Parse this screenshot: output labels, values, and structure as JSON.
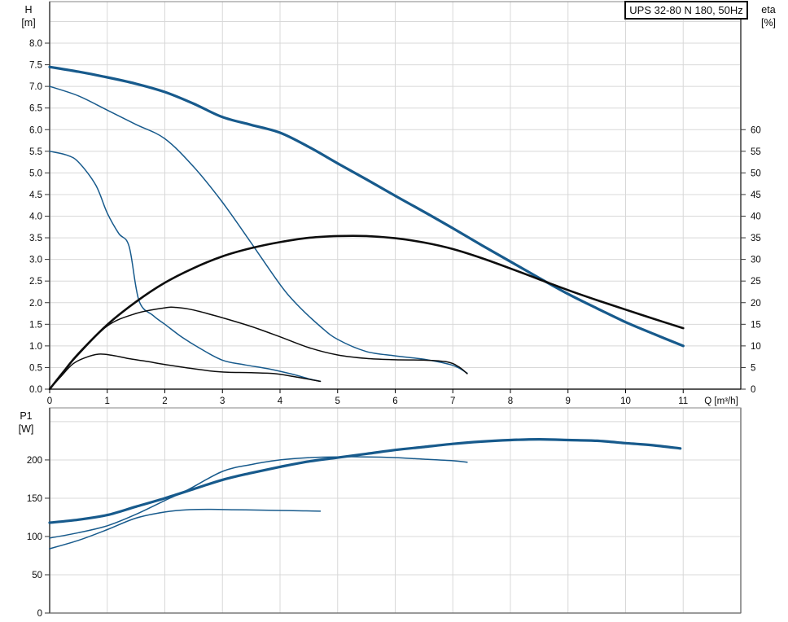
{
  "title_box": {
    "label": "UPS 32-80 N 180, 50Hz"
  },
  "axis_unit_labels": {
    "head_line1": "H",
    "head_line2": "[m]",
    "eta_line1": "eta",
    "eta_line2": "[%]",
    "power_line1": "P1",
    "power_line2": "[W]"
  },
  "colors": {
    "curve_blue": "#175a8c",
    "curve_black": "#0d0d0d",
    "grid": "#d8d8d8",
    "frame": "#9a9a9a",
    "axis_dark": "#6b6b6b",
    "axis_black": "#000000",
    "text": "#0a0a0a"
  },
  "chart_data": [
    {
      "type": "line",
      "name": "head-efficiency-chart",
      "x": {
        "min": 0,
        "max": 12,
        "gridline_step": 1,
        "tick_step": 1,
        "label": "Q [m³/h]",
        "tick_labels": [
          "0",
          "1",
          "2",
          "3",
          "4",
          "5",
          "6",
          "7",
          "8",
          "9",
          "10",
          "11"
        ]
      },
      "y_left": {
        "min": 0,
        "max": 8.96,
        "gridline_step": 0.5,
        "tick_step": 0.5,
        "label": "H [m]",
        "tick_labels": [
          "0.0",
          "0.5",
          "1.0",
          "1.5",
          "2.0",
          "2.5",
          "3.0",
          "3.5",
          "4.0",
          "4.5",
          "5.0",
          "5.5",
          "6.0",
          "6.5",
          "7.0",
          "7.5",
          "8.0"
        ]
      },
      "y_right": {
        "min": 0,
        "max": 89.6,
        "gridline_step": 5,
        "tick_step": 5,
        "label": "eta [%]",
        "tick_labels": [
          "0",
          "5",
          "10",
          "15",
          "20",
          "25",
          "30",
          "35",
          "40",
          "45",
          "50",
          "55",
          "60"
        ]
      },
      "series": [
        {
          "name": "head-curve-speed-3",
          "axis": "left",
          "color": "#175a8c",
          "width": 3.2,
          "points": [
            [
              0,
              7.45
            ],
            [
              0.5,
              7.34
            ],
            [
              1,
              7.21
            ],
            [
              1.5,
              7.06
            ],
            [
              2,
              6.87
            ],
            [
              2.5,
              6.6
            ],
            [
              3,
              6.29
            ],
            [
              3.5,
              6.11
            ],
            [
              4,
              5.93
            ],
            [
              4.5,
              5.6
            ],
            [
              5,
              5.22
            ],
            [
              5.5,
              4.85
            ],
            [
              6,
              4.47
            ],
            [
              6.5,
              4.1
            ],
            [
              7,
              3.72
            ],
            [
              7.5,
              3.33
            ],
            [
              8,
              2.95
            ],
            [
              8.5,
              2.57
            ],
            [
              9,
              2.2
            ],
            [
              9.5,
              1.87
            ],
            [
              10,
              1.55
            ],
            [
              10.5,
              1.27
            ],
            [
              11,
              1.0
            ]
          ]
        },
        {
          "name": "head-curve-speed-2",
          "axis": "left",
          "color": "#175a8c",
          "width": 1.5,
          "points": [
            [
              0,
              7.0
            ],
            [
              0.5,
              6.78
            ],
            [
              1,
              6.45
            ],
            [
              1.5,
              6.12
            ],
            [
              2,
              5.79
            ],
            [
              2.5,
              5.14
            ],
            [
              3,
              4.32
            ],
            [
              3.5,
              3.38
            ],
            [
              4,
              2.42
            ],
            [
              4.3,
              1.95
            ],
            [
              4.7,
              1.45
            ],
            [
              5,
              1.15
            ],
            [
              5.5,
              0.87
            ],
            [
              6,
              0.77
            ],
            [
              6.5,
              0.69
            ],
            [
              7,
              0.55
            ],
            [
              7.25,
              0.37
            ]
          ]
        },
        {
          "name": "head-curve-speed-1",
          "axis": "left",
          "color": "#175a8c",
          "width": 1.5,
          "points": [
            [
              0,
              5.5
            ],
            [
              0.3,
              5.41
            ],
            [
              0.5,
              5.25
            ],
            [
              0.8,
              4.72
            ],
            [
              1.0,
              4.07
            ],
            [
              1.2,
              3.6
            ],
            [
              1.38,
              3.3
            ],
            [
              1.55,
              2.05
            ],
            [
              1.8,
              1.7
            ],
            [
              2.0,
              1.5
            ],
            [
              2.3,
              1.2
            ],
            [
              2.6,
              0.95
            ],
            [
              3.0,
              0.67
            ],
            [
              3.4,
              0.56
            ],
            [
              3.8,
              0.47
            ],
            [
              4.2,
              0.35
            ],
            [
              4.5,
              0.24
            ],
            [
              4.7,
              0.18
            ]
          ]
        },
        {
          "name": "efficiency-curve-speed-3",
          "axis": "right",
          "color": "#0d0d0d",
          "width": 2.6,
          "points": [
            [
              0,
              0
            ],
            [
              0.25,
              4.2
            ],
            [
              0.5,
              8.2
            ],
            [
              1,
              14.9
            ],
            [
              1.5,
              20.2
            ],
            [
              2,
              24.6
            ],
            [
              2.5,
              28
            ],
            [
              3,
              30.7
            ],
            [
              3.5,
              32.6
            ],
            [
              4,
              34
            ],
            [
              4.5,
              35
            ],
            [
              5,
              35.4
            ],
            [
              5.5,
              35.4
            ],
            [
              6,
              34.9
            ],
            [
              6.5,
              33.9
            ],
            [
              7,
              32.4
            ],
            [
              7.5,
              30.3
            ],
            [
              8,
              27.9
            ],
            [
              8.5,
              25.4
            ],
            [
              9,
              22.9
            ],
            [
              9.5,
              20.6
            ],
            [
              10,
              18.4
            ],
            [
              10.5,
              16.2
            ],
            [
              11,
              14.1
            ]
          ]
        },
        {
          "name": "efficiency-curve-speed-2",
          "axis": "right",
          "color": "#0d0d0d",
          "width": 1.5,
          "points": [
            [
              0,
              0
            ],
            [
              0.25,
              4.2
            ],
            [
              0.5,
              8
            ],
            [
              1,
              14.6
            ],
            [
              1.5,
              17.5
            ],
            [
              2,
              18.8
            ],
            [
              2.2,
              18.9
            ],
            [
              2.5,
              18.3
            ],
            [
              3,
              16.5
            ],
            [
              3.5,
              14.5
            ],
            [
              4,
              12.1
            ],
            [
              4.5,
              9.6
            ],
            [
              5,
              7.9
            ],
            [
              5.5,
              7.1
            ],
            [
              6,
              6.8
            ],
            [
              6.5,
              6.7
            ],
            [
              6.9,
              6.3
            ],
            [
              7.1,
              5.2
            ],
            [
              7.25,
              3.6
            ]
          ]
        },
        {
          "name": "efficiency-curve-speed-1",
          "axis": "right",
          "color": "#0d0d0d",
          "width": 1.5,
          "points": [
            [
              0,
              0
            ],
            [
              0.2,
              3
            ],
            [
              0.4,
              5.8
            ],
            [
              0.6,
              7.2
            ],
            [
              0.85,
              8.1
            ],
            [
              1.1,
              7.8
            ],
            [
              1.4,
              7.0
            ],
            [
              1.7,
              6.4
            ],
            [
              2.0,
              5.7
            ],
            [
              2.4,
              4.9
            ],
            [
              2.8,
              4.2
            ],
            [
              3.1,
              3.9
            ],
            [
              3.5,
              3.8
            ],
            [
              3.9,
              3.6
            ],
            [
              4.2,
              3.0
            ],
            [
              4.5,
              2.3
            ],
            [
              4.7,
              1.8
            ]
          ]
        }
      ]
    },
    {
      "type": "line",
      "name": "power-chart",
      "x": {
        "min": 0,
        "max": 12,
        "gridline_step": 1,
        "tick_step": 1,
        "label": "",
        "tick_labels": []
      },
      "y_left": {
        "min": 0,
        "max": 268,
        "gridline_step": 50,
        "tick_step": 50,
        "label": "P1 [W]",
        "tick_labels": [
          "0",
          "50",
          "100",
          "150",
          "200"
        ]
      },
      "series": [
        {
          "name": "power-curve-speed-3",
          "axis": "left",
          "color": "#175a8c",
          "width": 3.2,
          "points": [
            [
              0,
              118
            ],
            [
              0.5,
              122
            ],
            [
              1,
              128
            ],
            [
              1.5,
              139
            ],
            [
              2,
              150
            ],
            [
              2.5,
              162
            ],
            [
              3,
              174
            ],
            [
              3.5,
              183
            ],
            [
              4,
              191
            ],
            [
              4.5,
              198
            ],
            [
              5,
              203
            ],
            [
              5.5,
              208
            ],
            [
              6,
              213
            ],
            [
              6.5,
              217
            ],
            [
              7,
              221
            ],
            [
              7.5,
              224
            ],
            [
              8,
              226
            ],
            [
              8.5,
              227
            ],
            [
              9,
              226
            ],
            [
              9.5,
              225
            ],
            [
              10,
              222
            ],
            [
              10.5,
              219
            ],
            [
              10.95,
              215
            ]
          ]
        },
        {
          "name": "power-curve-speed-2",
          "axis": "left",
          "color": "#175a8c",
          "width": 1.5,
          "points": [
            [
              0,
              98
            ],
            [
              0.5,
              105
            ],
            [
              1,
              114
            ],
            [
              1.5,
              129
            ],
            [
              2,
              147
            ],
            [
              2.4,
              161
            ],
            [
              3,
              185
            ],
            [
              3.5,
              194
            ],
            [
              4,
              200
            ],
            [
              4.5,
              203
            ],
            [
              5,
              204
            ],
            [
              5.5,
              204
            ],
            [
              6,
              203
            ],
            [
              6.5,
              201
            ],
            [
              7,
              199
            ],
            [
              7.25,
              197
            ]
          ]
        },
        {
          "name": "power-curve-speed-1",
          "axis": "left",
          "color": "#175a8c",
          "width": 1.5,
          "points": [
            [
              0,
              84
            ],
            [
              0.5,
              95
            ],
            [
              1,
              109
            ],
            [
              1.5,
              124
            ],
            [
              2,
              132
            ],
            [
              2.4,
              135
            ],
            [
              2.8,
              135.5
            ],
            [
              3.2,
              135
            ],
            [
              3.6,
              134.5
            ],
            [
              4.0,
              134
            ],
            [
              4.4,
              133.5
            ],
            [
              4.7,
              133
            ]
          ]
        }
      ]
    }
  ]
}
